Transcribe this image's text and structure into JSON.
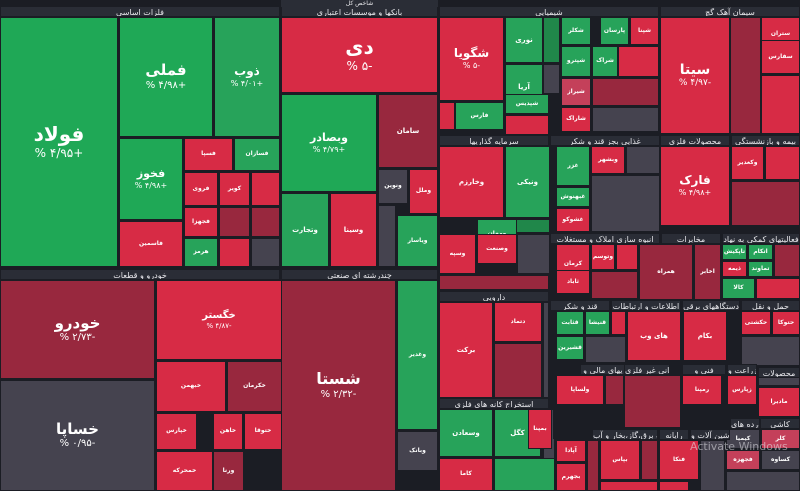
{
  "colors": {
    "strong_green": "#1fa856",
    "green": "#27a35a",
    "light_green": "#3bb36d",
    "dark_green": "#20874a",
    "neutral": "#45434f",
    "light_red": "#c4405a",
    "red": "#d72b45",
    "dark_red": "#98283e",
    "background": "#1b1d24",
    "header": "#2a2d36"
  },
  "watermark": "Activate Windows",
  "chart_data": {
    "type": "treemap",
    "top_header": "شاخص کل",
    "sectors": [
      {
        "name": "فلزات اساسی"
      },
      {
        "name": "بانکها و موسسات اعتباری"
      },
      {
        "name": "شیمیایی"
      },
      {
        "name": "سیمان آهک گچ"
      },
      {
        "name": "خودرو و قطعات"
      },
      {
        "name": "چندرشته ای صنعتی"
      },
      {
        "name": "سرمایه گذاریها"
      },
      {
        "name": "غذایی بجز قند و شکر"
      },
      {
        "name": "محصولات فلزی"
      },
      {
        "name": "بیمه و بازنشستگی"
      },
      {
        "name": "انبوه سازی املاک و مستغلات"
      },
      {
        "name": "مخابرات"
      },
      {
        "name": "فعالیتهای کمکی به نهاد"
      },
      {
        "name": "دارویی"
      },
      {
        "name": "قند و شکر"
      },
      {
        "name": "اطلاعات و ارتباطات"
      },
      {
        "name": "دستگاههای برقی"
      },
      {
        "name": "حمل و نقل"
      },
      {
        "name": "واسطه گریهای مالی و"
      },
      {
        "name": "کانی غیر فلزی"
      },
      {
        "name": "فنی و"
      },
      {
        "name": "زراعت و"
      },
      {
        "name": "محصولات"
      },
      {
        "name": "استخراج کانه های فلزی"
      },
      {
        "name": "عرضه برق،گاز،بخار و آب"
      },
      {
        "name": "رایانه"
      },
      {
        "name": "ماشین آلات و"
      },
      {
        "name": "فراورده های"
      },
      {
        "name": "کاشی"
      }
    ],
    "stocks": [
      {
        "name": "فولاد",
        "change": "+۴/۹۵ %",
        "color": "strong_green"
      },
      {
        "name": "فملی",
        "change": "+۴/۹۸ %",
        "color": "strong_green"
      },
      {
        "name": "ذوب",
        "change": "+۴/۰۱ %",
        "color": "green"
      },
      {
        "name": "فخوز",
        "change": "+۴/۹۸ %",
        "color": "strong_green"
      },
      {
        "name": "فسپا",
        "change": "",
        "color": "red"
      },
      {
        "name": "فسازان",
        "change": "",
        "color": "green"
      },
      {
        "name": "فروی",
        "change": "",
        "color": "red"
      },
      {
        "name": "کویر",
        "change": "",
        "color": "red"
      },
      {
        "name": "فجهزا",
        "change": "",
        "color": "red"
      },
      {
        "name": "فاسمین",
        "change": "",
        "color": "red"
      },
      {
        "name": "هرمز",
        "change": "",
        "color": "green"
      },
      {
        "name": "دی",
        "change": "-۵ %",
        "color": "red"
      },
      {
        "name": "وبصادر",
        "change": "+۴/۷۹ %",
        "color": "strong_green"
      },
      {
        "name": "سامان",
        "change": "",
        "color": "dark_red"
      },
      {
        "name": "ونوین",
        "change": "",
        "color": "neutral"
      },
      {
        "name": "وتجارت",
        "change": "",
        "color": "green"
      },
      {
        "name": "وسینا",
        "change": "",
        "color": "red"
      },
      {
        "name": "وملل",
        "change": "",
        "color": "red"
      },
      {
        "name": "ویاسار",
        "change": "",
        "color": "green"
      },
      {
        "name": "شگویا",
        "change": "-۵ %",
        "color": "red"
      },
      {
        "name": "نوری",
        "change": "",
        "color": "green"
      },
      {
        "name": "شکلر",
        "change": "",
        "color": "green"
      },
      {
        "name": "پارسان",
        "change": "",
        "color": "green"
      },
      {
        "name": "شپنا",
        "change": "",
        "color": "red"
      },
      {
        "name": "آریا",
        "change": "",
        "color": "green"
      },
      {
        "name": "شیراز",
        "change": "",
        "color": "light_red"
      },
      {
        "name": "شپترو",
        "change": "",
        "color": "green"
      },
      {
        "name": "شراک",
        "change": "",
        "color": "green"
      },
      {
        "name": "شپدیس",
        "change": "",
        "color": "green"
      },
      {
        "name": "شاراک",
        "change": "",
        "color": "red"
      },
      {
        "name": "فارس",
        "change": "",
        "color": "green"
      },
      {
        "name": "سیتا",
        "change": "-۴/۹۷ %",
        "color": "red"
      },
      {
        "name": "ستران",
        "change": "",
        "color": "red"
      },
      {
        "name": "سفارس",
        "change": "",
        "color": "red"
      },
      {
        "name": "خودرو",
        "change": "-۲/۷۳ %",
        "color": "dark_red"
      },
      {
        "name": "خساپا",
        "change": "-۰/۹۵ %",
        "color": "neutral"
      },
      {
        "name": "خگستر",
        "change": "-۴/۸۷ %",
        "color": "red"
      },
      {
        "name": "خبهمن",
        "change": "",
        "color": "red"
      },
      {
        "name": "خکرمان",
        "change": "",
        "color": "dark_red"
      },
      {
        "name": "خپارس",
        "change": "",
        "color": "red"
      },
      {
        "name": "خاهن",
        "change": "",
        "color": "red"
      },
      {
        "name": "ختوقا",
        "change": "",
        "color": "red"
      },
      {
        "name": "خمحرکه",
        "change": "",
        "color": "red"
      },
      {
        "name": "ورنا",
        "change": "",
        "color": "dark_red"
      },
      {
        "name": "شستا",
        "change": "-۲/۳۲ %",
        "color": "dark_red"
      },
      {
        "name": "وغدیر",
        "change": "",
        "color": "green"
      },
      {
        "name": "وبانک",
        "change": "",
        "color": "neutral"
      },
      {
        "name": "وخارزم",
        "change": "",
        "color": "red"
      },
      {
        "name": "ونیکی",
        "change": "",
        "color": "green"
      },
      {
        "name": "ومهان",
        "change": "",
        "color": "green"
      },
      {
        "name": "وصنعت",
        "change": "",
        "color": "red"
      },
      {
        "name": "وسپه",
        "change": "",
        "color": "red"
      },
      {
        "name": "غزر",
        "change": "",
        "color": "green"
      },
      {
        "name": "وبشهر",
        "change": "",
        "color": "red"
      },
      {
        "name": "غبهنوش",
        "change": "",
        "color": "green"
      },
      {
        "name": "غشوکو",
        "change": "",
        "color": "red"
      },
      {
        "name": "فارک",
        "change": "+۴/۹۸ %",
        "color": "red"
      },
      {
        "name": "وکغدیر",
        "change": "",
        "color": "red"
      },
      {
        "name": "کرمان",
        "change": "",
        "color": "red"
      },
      {
        "name": "وتوسم",
        "change": "",
        "color": "red"
      },
      {
        "name": "ثاباد",
        "change": "",
        "color": "red"
      },
      {
        "name": "همراه",
        "change": "",
        "color": "dark_red"
      },
      {
        "name": "اخابر",
        "change": "",
        "color": "dark_red"
      },
      {
        "name": "تاپکیش",
        "change": "",
        "color": "green"
      },
      {
        "name": "اتکام",
        "change": "",
        "color": "green"
      },
      {
        "name": "تماوند",
        "change": "",
        "color": "green"
      },
      {
        "name": "کالا",
        "change": "",
        "color": "green"
      },
      {
        "name": "ذیمه",
        "change": "",
        "color": "red"
      },
      {
        "name": "برکت",
        "change": "",
        "color": "red"
      },
      {
        "name": "دتماد",
        "change": "",
        "color": "red"
      },
      {
        "name": "قثابت",
        "change": "",
        "color": "green"
      },
      {
        "name": "قشیرین",
        "change": "",
        "color": "green"
      },
      {
        "name": "قنیشا",
        "change": "",
        "color": "green"
      },
      {
        "name": "های وب",
        "change": "",
        "color": "red"
      },
      {
        "name": "بکام",
        "change": "",
        "color": "red"
      },
      {
        "name": "حکشتی",
        "change": "",
        "color": "red"
      },
      {
        "name": "حتوکا",
        "change": "",
        "color": "red"
      },
      {
        "name": "وآتوس",
        "change": "",
        "color": "red"
      },
      {
        "name": "ولساپا",
        "change": "",
        "color": "red"
      },
      {
        "name": "رمپنا",
        "change": "",
        "color": "red"
      },
      {
        "name": "زپارس",
        "change": "",
        "color": "red"
      },
      {
        "name": "مادیرا",
        "change": "",
        "color": "red"
      },
      {
        "name": "کگل",
        "change": "",
        "color": "green"
      },
      {
        "name": "وسعادن",
        "change": "",
        "color": "green"
      },
      {
        "name": "کاما",
        "change": "",
        "color": "red"
      },
      {
        "name": "بمپنا",
        "change": "",
        "color": "red"
      },
      {
        "name": "آپادا",
        "change": "",
        "color": "red"
      },
      {
        "name": "بجهرم",
        "change": "",
        "color": "red"
      },
      {
        "name": "بپاس",
        "change": "",
        "color": "red"
      },
      {
        "name": "فنکا",
        "change": "",
        "color": "red"
      },
      {
        "name": "کیمیا",
        "change": "",
        "color": "neutral"
      },
      {
        "name": "کلر",
        "change": "",
        "color": "light_red"
      },
      {
        "name": "فجهزه",
        "change": "",
        "color": "light_red"
      },
      {
        "name": "کساوه",
        "change": "",
        "color": "neutral"
      }
    ]
  }
}
